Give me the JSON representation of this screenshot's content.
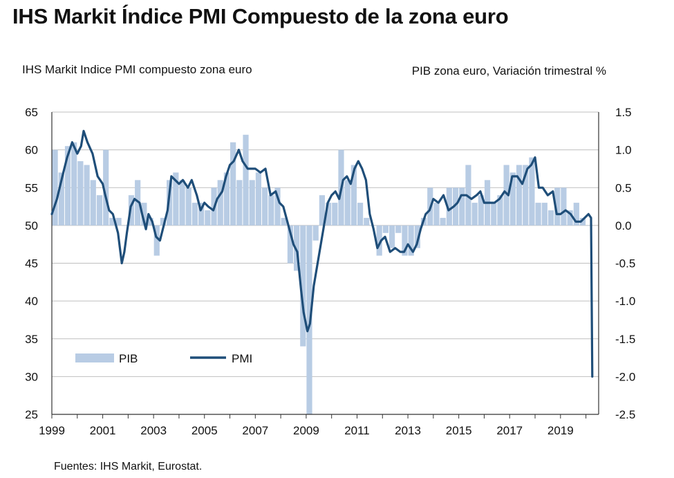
{
  "title": "IHS Markit Índice PMI Compuesto de la zona euro",
  "source": "Fuentes: IHS Markit, Eurostat.",
  "chart_data": {
    "type": "bar+line",
    "ylabel_left": "IHS Markit Indice PMI compuesto zona euro",
    "ylabel_right": "PIB zona euro, Variación trimestral %",
    "ylim_left": [
      25,
      65
    ],
    "ylim_right": [
      -2.5,
      1.5
    ],
    "yticks_left": [
      "65",
      "60",
      "55",
      "50",
      "45",
      "40",
      "35",
      "30",
      "25"
    ],
    "yticks_right": [
      "1.5",
      "1.0",
      "0.5",
      "0.0",
      "-0.5",
      "-1.0",
      "-1.5",
      "-2.0",
      "-2.5"
    ],
    "xticks": [
      "1999",
      "2001",
      "2003",
      "2005",
      "2007",
      "2009",
      "2011",
      "2013",
      "2015",
      "2017",
      "2019"
    ],
    "grid": "horizontal",
    "legend": {
      "placement": "lower-left",
      "bar_label": "PIB",
      "line_label": "PMI"
    },
    "colors": {
      "bar": "#b8cce4",
      "line": "#1f4e79",
      "grid": "#bfbfbf",
      "axis": "#333333"
    },
    "gdp_series": {
      "name": "PIB",
      "x": [
        "1999 Q1",
        "1999 Q2",
        "1999 Q3",
        "1999 Q4",
        "2000 Q1",
        "2000 Q2",
        "2000 Q3",
        "2000 Q4",
        "2001 Q1",
        "2001 Q2",
        "2001 Q3",
        "2001 Q4",
        "2002 Q1",
        "2002 Q2",
        "2002 Q3",
        "2002 Q4",
        "2003 Q1",
        "2003 Q2",
        "2003 Q3",
        "2003 Q4",
        "2004 Q1",
        "2004 Q2",
        "2004 Q3",
        "2004 Q4",
        "2005 Q1",
        "2005 Q2",
        "2005 Q3",
        "2005 Q4",
        "2006 Q1",
        "2006 Q2",
        "2006 Q3",
        "2006 Q4",
        "2007 Q1",
        "2007 Q2",
        "2007 Q3",
        "2007 Q4",
        "2008 Q1",
        "2008 Q2",
        "2008 Q3",
        "2008 Q4",
        "2009 Q1",
        "2009 Q2",
        "2009 Q3",
        "2009 Q4",
        "2010 Q1",
        "2010 Q2",
        "2010 Q3",
        "2010 Q4",
        "2011 Q1",
        "2011 Q2",
        "2011 Q3",
        "2011 Q4",
        "2012 Q1",
        "2012 Q2",
        "2012 Q3",
        "2012 Q4",
        "2013 Q1",
        "2013 Q2",
        "2013 Q3",
        "2013 Q4",
        "2014 Q1",
        "2014 Q2",
        "2014 Q3",
        "2014 Q4",
        "2015 Q1",
        "2015 Q2",
        "2015 Q3",
        "2015 Q4",
        "2016 Q1",
        "2016 Q2",
        "2016 Q3",
        "2016 Q4",
        "2017 Q1",
        "2017 Q2",
        "2017 Q3",
        "2017 Q4",
        "2018 Q1",
        "2018 Q2",
        "2018 Q3",
        "2018 Q4",
        "2019 Q1",
        "2019 Q2",
        "2019 Q3",
        "2019 Q4",
        "2020 Q1"
      ],
      "values": [
        1.0,
        0.7,
        1.05,
        1.1,
        0.85,
        0.8,
        0.6,
        0.4,
        1.0,
        0.1,
        0.1,
        0.0,
        0.4,
        0.6,
        0.3,
        0.1,
        -0.4,
        0.1,
        0.6,
        0.7,
        0.6,
        0.5,
        0.3,
        0.3,
        0.2,
        0.5,
        0.6,
        0.7,
        1.1,
        0.6,
        1.2,
        0.6,
        0.7,
        0.5,
        0.4,
        0.5,
        0.1,
        -0.5,
        -0.6,
        -1.6,
        -2.5,
        -0.2,
        0.4,
        0.3,
        0.3,
        1.0,
        0.6,
        0.8,
        0.3,
        0.1,
        0.0,
        -0.4,
        -0.1,
        -0.3,
        -0.1,
        -0.4,
        -0.4,
        -0.3,
        0.1,
        0.5,
        0.3,
        0.1,
        0.5,
        0.5,
        0.5,
        0.8,
        0.3,
        0.4,
        0.6,
        0.3,
        0.4,
        0.8,
        0.7,
        0.8,
        0.8,
        0.9,
        0.3,
        0.3,
        0.2,
        0.5,
        0.5,
        0.2,
        0.3,
        0.1,
        0.0
      ]
    },
    "pmi_series": {
      "name": "PMI",
      "x": [
        1999.0,
        1999.2,
        1999.45,
        1999.6,
        1999.8,
        2000.0,
        2000.15,
        2000.25,
        2000.4,
        2000.6,
        2000.8,
        2001.0,
        2001.1,
        2001.25,
        2001.4,
        2001.6,
        2001.75,
        2001.85,
        2001.95,
        2002.1,
        2002.25,
        2002.45,
        2002.55,
        2002.7,
        2002.8,
        2002.95,
        2003.1,
        2003.25,
        2003.4,
        2003.55,
        2003.7,
        2003.85,
        2004.0,
        2004.15,
        2004.35,
        2004.5,
        2004.7,
        2004.85,
        2005.0,
        2005.15,
        2005.35,
        2005.5,
        2005.7,
        2005.85,
        2006.0,
        2006.15,
        2006.35,
        2006.5,
        2006.7,
        2006.85,
        2007.0,
        2007.2,
        2007.4,
        2007.6,
        2007.8,
        2007.95,
        2008.1,
        2008.3,
        2008.5,
        2008.65,
        2008.8,
        2008.9,
        2009.05,
        2009.15,
        2009.3,
        2009.5,
        2009.7,
        2009.85,
        2010.0,
        2010.15,
        2010.3,
        2010.45,
        2010.6,
        2010.75,
        2010.9,
        2011.05,
        2011.2,
        2011.35,
        2011.5,
        2011.65,
        2011.8,
        2011.95,
        2012.1,
        2012.3,
        2012.5,
        2012.7,
        2012.85,
        2013.0,
        2013.2,
        2013.35,
        2013.5,
        2013.7,
        2013.85,
        2014.0,
        2014.2,
        2014.4,
        2014.6,
        2014.8,
        2014.95,
        2015.1,
        2015.3,
        2015.5,
        2015.7,
        2015.85,
        2016.0,
        2016.2,
        2016.4,
        2016.6,
        2016.8,
        2016.95,
        2017.1,
        2017.3,
        2017.5,
        2017.7,
        2017.85,
        2018.0,
        2018.15,
        2018.3,
        2018.5,
        2018.7,
        2018.85,
        2019.0,
        2019.2,
        2019.4,
        2019.6,
        2019.8,
        2019.95,
        2020.1,
        2020.2,
        2020.25
      ],
      "values": [
        51.5,
        53.5,
        57.0,
        59.0,
        61.0,
        59.5,
        60.5,
        62.5,
        61.0,
        59.5,
        56.5,
        55.5,
        54.0,
        52.0,
        51.5,
        49.0,
        45.0,
        46.5,
        49.0,
        52.5,
        53.5,
        53.0,
        51.5,
        49.5,
        51.5,
        50.5,
        48.5,
        48.0,
        50.0,
        52.0,
        56.5,
        56.0,
        55.5,
        56.0,
        55.0,
        56.0,
        54.0,
        52.0,
        53.0,
        52.5,
        52.0,
        53.5,
        54.5,
        56.5,
        58.0,
        58.5,
        60.0,
        58.5,
        57.5,
        57.5,
        57.5,
        57.0,
        57.5,
        54.0,
        54.5,
        53.0,
        52.5,
        50.0,
        47.5,
        46.5,
        41.5,
        38.5,
        36.0,
        37.0,
        42.0,
        46.0,
        50.0,
        53.0,
        54.0,
        54.5,
        53.5,
        56.0,
        56.5,
        55.5,
        57.5,
        58.5,
        57.5,
        56.0,
        51.5,
        49.5,
        47.0,
        48.0,
        48.5,
        46.5,
        47.0,
        46.5,
        46.5,
        47.5,
        46.5,
        47.5,
        49.5,
        51.5,
        52.0,
        53.5,
        53.0,
        54.0,
        52.0,
        52.5,
        53.0,
        54.0,
        54.0,
        53.5,
        54.0,
        54.5,
        53.0,
        53.0,
        53.0,
        53.5,
        54.5,
        54.0,
        56.5,
        56.5,
        55.5,
        57.5,
        58.0,
        59.0,
        55.0,
        55.0,
        54.0,
        54.5,
        51.5,
        51.5,
        52.0,
        51.5,
        50.5,
        50.5,
        51.0,
        51.5,
        51.0,
        30.0
      ]
    }
  }
}
